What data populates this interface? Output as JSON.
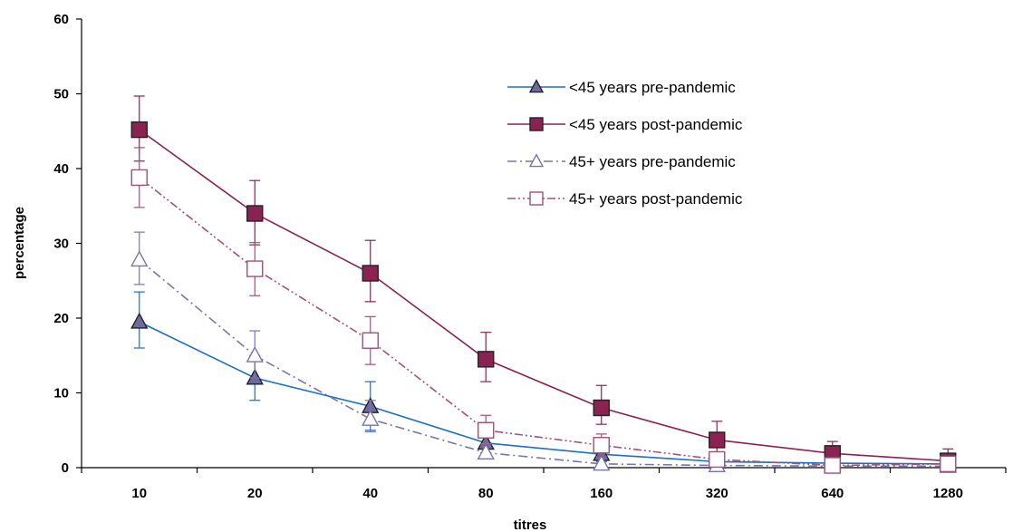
{
  "chart_data": {
    "type": "line",
    "title": "",
    "xlabel": "titres",
    "ylabel": "percentage",
    "categories": [
      "10",
      "20",
      "40",
      "80",
      "160",
      "320",
      "640",
      "1280"
    ],
    "ylim": [
      0,
      60
    ],
    "yticks": [
      0,
      10,
      20,
      30,
      40,
      50,
      60
    ],
    "grid": false,
    "legend_position": "top-right",
    "series": [
      {
        "name": "<45 years pre-pandemic",
        "values": [
          19.5,
          12.0,
          8.2,
          3.3,
          1.8,
          0.8,
          0.6,
          0.5
        ],
        "error_upper": [
          23.5,
          15.0,
          11.5,
          4.8,
          3.0,
          1.5,
          1.0,
          0.8
        ],
        "error_lower": [
          16.0,
          9.0,
          5.0,
          2.0,
          0.8,
          0.3,
          0.2,
          0.1
        ],
        "color": "#1f6fbf",
        "marker": "triangle",
        "filled": true,
        "dash": "solid",
        "marker_fill": "#6e6aa0"
      },
      {
        "name": "<45 years post-pandemic",
        "values": [
          45.2,
          34.0,
          26.0,
          14.5,
          8.0,
          3.7,
          1.9,
          0.9
        ],
        "error_upper": [
          49.7,
          38.4,
          30.4,
          18.1,
          11.0,
          6.2,
          3.5,
          2.5
        ],
        "error_lower": [
          41.0,
          29.8,
          22.2,
          11.5,
          5.8,
          2.0,
          0.8,
          0.2
        ],
        "color": "#8b2252",
        "marker": "square",
        "filled": true,
        "dash": "solid",
        "marker_fill": "#8b2252"
      },
      {
        "name": "45+ years pre-pandemic",
        "values": [
          27.8,
          15.0,
          6.5,
          2.0,
          0.5,
          0.3,
          0.2,
          0.2
        ],
        "error_upper": [
          31.5,
          18.3,
          9.0,
          3.2,
          1.2,
          0.8,
          0.5,
          0.4
        ],
        "error_lower": [
          24.5,
          12.0,
          4.8,
          1.2,
          0.1,
          0.0,
          0.0,
          0.0
        ],
        "color": "#7a73b0",
        "marker": "triangle",
        "filled": false,
        "dash": "dashdot",
        "marker_fill": "#ffffff"
      },
      {
        "name": "45+ years post-pandemic",
        "values": [
          38.8,
          26.6,
          17.0,
          5.0,
          3.0,
          1.1,
          0.3,
          0.5
        ],
        "error_upper": [
          42.8,
          30.1,
          20.2,
          7.0,
          4.5,
          2.0,
          0.8,
          1.0
        ],
        "error_lower": [
          34.8,
          23.0,
          13.8,
          3.0,
          1.5,
          0.3,
          0.0,
          0.0
        ],
        "color": "#a0527a",
        "marker": "square",
        "filled": false,
        "dash": "dashdotdot",
        "marker_fill": "#ffffff"
      }
    ]
  }
}
